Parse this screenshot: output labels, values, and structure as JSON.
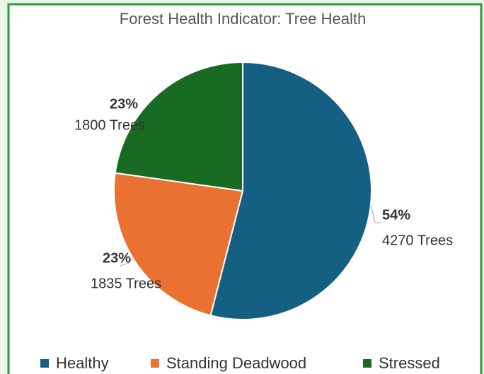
{
  "chart_data": {
    "type": "pie",
    "title": "Forest Health Indicator: Tree Health",
    "categories": [
      "Healthy",
      "Standing Deadwood",
      "Stressed"
    ],
    "values": [
      4270,
      1835,
      1800
    ],
    "value_labels": [
      "4270 Trees",
      "1835 Trees",
      "1800 Trees"
    ],
    "percent_values": [
      54,
      23,
      23
    ],
    "percent_labels": [
      "54%",
      "23%",
      "23%"
    ],
    "colors": [
      "#156082",
      "#e97132",
      "#196b24"
    ],
    "legend": "bottom"
  }
}
